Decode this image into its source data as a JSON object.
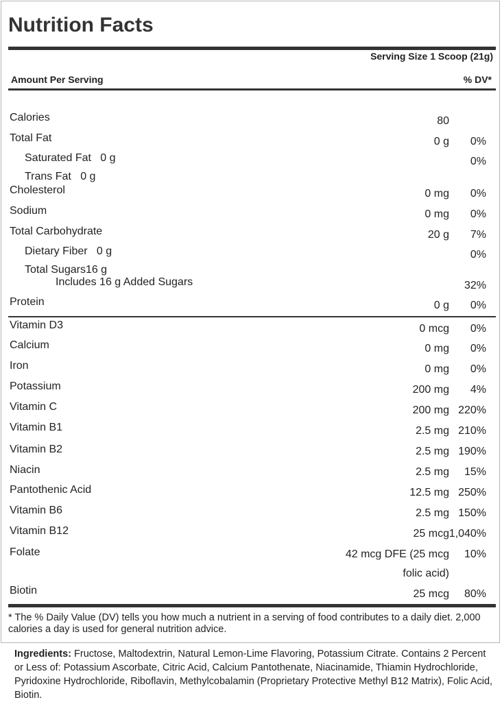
{
  "title": "Nutrition Facts",
  "serving_size": "Serving Size 1 Scoop (21g)",
  "amount_per_serving": "Amount Per Serving",
  "dv_header": "% DV*",
  "nutrients": [
    {
      "name": "Calories",
      "amount": "80",
      "dv": ""
    },
    {
      "name": "Total Fat",
      "amount": "0 g",
      "dv": "0%"
    },
    {
      "name": "Saturated Fat   0 g",
      "amount": "",
      "dv": "0%",
      "indent": 1
    },
    {
      "name": "Trans Fat   0 g",
      "amount": "",
      "dv": "",
      "indent": 1
    },
    {
      "name": "Cholesterol",
      "amount": "0 mg",
      "dv": "0%"
    },
    {
      "name": "Sodium",
      "amount": "0 mg",
      "dv": "0%"
    },
    {
      "name": "Total Carbohydrate",
      "amount": "20 g",
      "dv": "7%"
    },
    {
      "name": "Dietary Fiber   0 g",
      "amount": "",
      "dv": "0%",
      "indent": 1
    },
    {
      "name": "Total Sugars16 g",
      "amount": "",
      "dv": "",
      "indent": 1
    },
    {
      "name": "Includes 16 g Added Sugars",
      "amount": "",
      "dv": "32%",
      "indent": 2
    },
    {
      "name": "Protein",
      "amount": "0 g",
      "dv": "0%"
    },
    {
      "name": "Vitamin D3",
      "amount": "0 mcg",
      "dv": "0%"
    },
    {
      "name": "Calcium",
      "amount": "0 mg",
      "dv": "0%"
    },
    {
      "name": "Iron",
      "amount": "0 mg",
      "dv": "0%"
    },
    {
      "name": "Potassium",
      "amount": "200 mg",
      "dv": "4%"
    },
    {
      "name": "Vitamin C",
      "amount": "200 mg",
      "dv": "220%"
    },
    {
      "name": "Vitamin B1",
      "amount": "2.5 mg",
      "dv": "210%"
    },
    {
      "name": "Vitamin B2",
      "amount": "2.5 mg",
      "dv": "190%"
    },
    {
      "name": "Niacin",
      "amount": "2.5 mg",
      "dv": "15%"
    },
    {
      "name": "Pantothenic Acid",
      "amount": "12.5 mg",
      "dv": "250%"
    },
    {
      "name": "Vitamin B6",
      "amount": "2.5 mg",
      "dv": "150%"
    },
    {
      "name": "Vitamin B12",
      "amount": "25 mcg",
      "dv": "1,040%"
    },
    {
      "name": "Folate",
      "amount": "42 mcg DFE (25 mcg",
      "amount2": "folic acid)",
      "dv": "10%"
    },
    {
      "name": "Biotin",
      "amount": "25 mcg",
      "dv": "80%"
    }
  ],
  "footnote": "* The % Daily Value (DV) tells you how much a nutrient in a serving of food contributes to a daily diet. 2,000 calories a day is used for general nutrition advice.",
  "ingredients_label": "Ingredients:",
  "ingredients_text": " Fructose, Maltodextrin, Natural Lemon-Lime Flavoring, Potassium Citrate. Contains 2 Percent or Less of: Potassium Ascorbate, Citric Acid, Calcium Pantothenate, Niacinamide, Thiamin Hydrochloride, Pyridoxine Hydrochloride, Riboflavin, Methylcobalamin (Proprietary Protective Methyl B12 Matrix), Folic Acid, Biotin."
}
